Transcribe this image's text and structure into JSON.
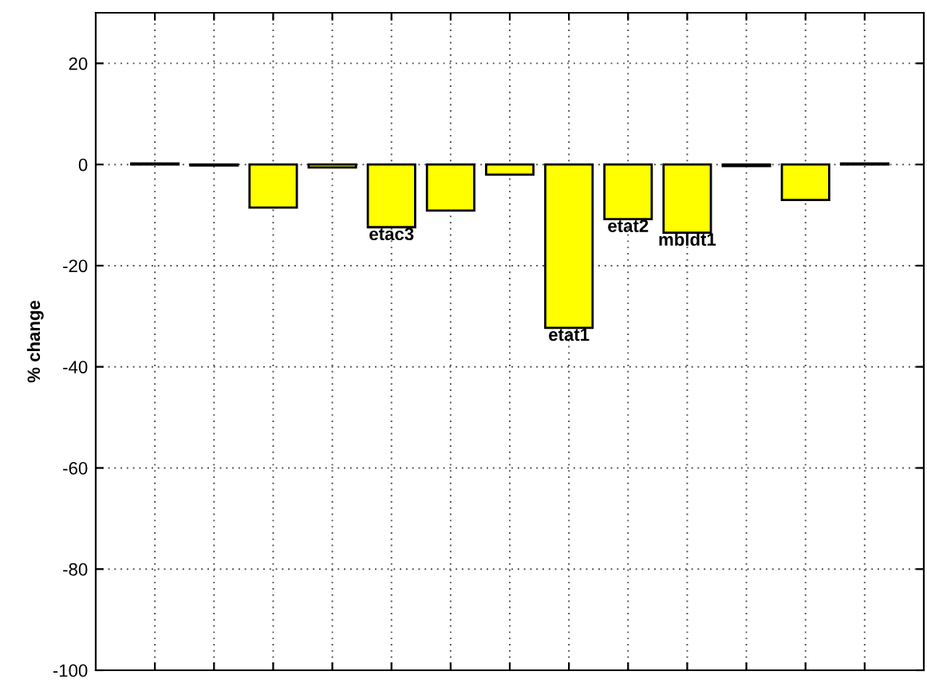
{
  "chart_data": {
    "type": "bar",
    "ylabel": "% change",
    "categories": [
      null,
      null,
      null,
      null,
      null,
      null,
      null,
      null,
      null,
      null,
      null,
      null,
      null
    ],
    "values": [
      0.2,
      -0.2,
      -8.5,
      -0.6,
      -12.4,
      -9.1,
      -2.0,
      -32.3,
      -10.8,
      -13.5,
      -0.3,
      -7.0,
      0.2
    ],
    "value_labels": [
      null,
      null,
      null,
      null,
      "etac3",
      null,
      null,
      "etat1",
      "etat2",
      "mbldt1",
      null,
      null,
      null
    ],
    "color": "#ffff00",
    "ylim": [
      -100,
      30
    ],
    "yticks": [
      -100,
      -80,
      -60,
      -40,
      -20,
      0,
      20
    ],
    "grid": true
  }
}
